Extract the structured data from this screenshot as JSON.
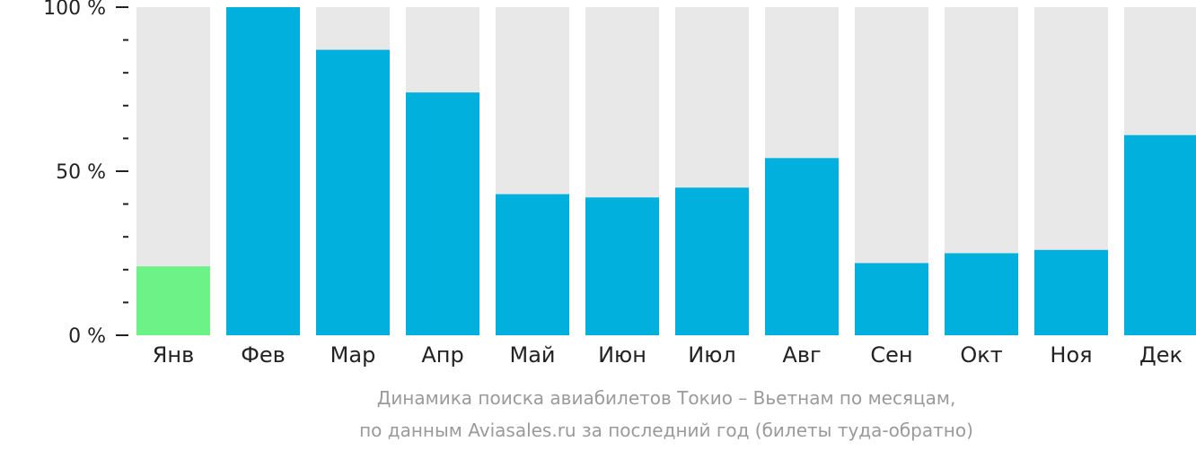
{
  "chart_data": {
    "type": "bar",
    "categories": [
      "Янв",
      "Фев",
      "Мар",
      "Апр",
      "Май",
      "Июн",
      "Июл",
      "Авг",
      "Сен",
      "Окт",
      "Ноя",
      "Дек"
    ],
    "values": [
      21,
      100,
      87,
      74,
      43,
      42,
      45,
      54,
      22,
      25,
      26,
      61
    ],
    "ylim": [
      0,
      100
    ],
    "yticks": [
      {
        "value": 0,
        "label": "0 %"
      },
      {
        "value": 50,
        "label": "50 %"
      },
      {
        "value": 100,
        "label": "100 %"
      }
    ],
    "minor_tick_step": 10,
    "highlight_index": 0,
    "colors": {
      "bar": "#01b0dd",
      "highlight": "#6cf287",
      "track": "#e8e8e8",
      "axis": "#222222"
    },
    "grid": false,
    "legend": "none",
    "caption_lines": [
      "Динамика поиска авиабилетов Токио – Вьетнам по месяцам,",
      "по данным Aviasales.ru за последний год (билеты туда-обратно)"
    ]
  }
}
